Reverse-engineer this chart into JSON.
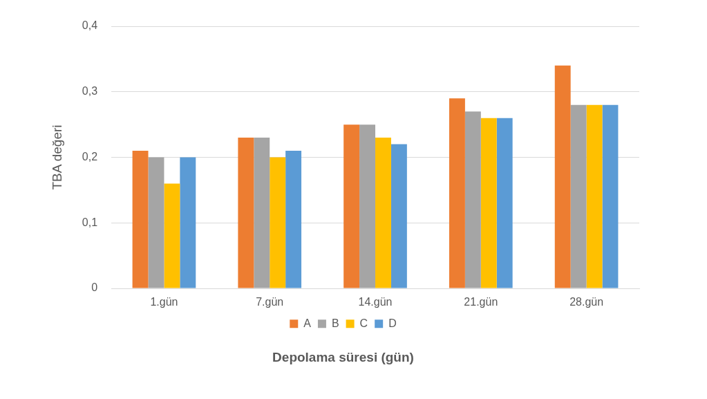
{
  "chart_data": {
    "type": "bar",
    "xlabel": "Depolama süresi (gün)",
    "ylabel": "TBA değeri",
    "categories": [
      "1.gün",
      "7.gün",
      "14.gün",
      "21.gün",
      "28.gün"
    ],
    "series": [
      {
        "name": "A",
        "color": "#ed7d31",
        "values": [
          0.21,
          0.23,
          0.25,
          0.29,
          0.34
        ]
      },
      {
        "name": "B",
        "color": "#a5a5a5",
        "values": [
          0.2,
          0.23,
          0.25,
          0.27,
          0.28
        ]
      },
      {
        "name": "C",
        "color": "#ffc000",
        "values": [
          0.16,
          0.2,
          0.23,
          0.26,
          0.28
        ]
      },
      {
        "name": "D",
        "color": "#5b9bd5",
        "values": [
          0.2,
          0.21,
          0.22,
          0.26,
          0.28
        ]
      }
    ],
    "ylim": [
      0,
      0.4
    ],
    "yticks": [
      {
        "value": 0,
        "label": "0"
      },
      {
        "value": 0.1,
        "label": "0,1"
      },
      {
        "value": 0.2,
        "label": "0,2"
      },
      {
        "value": 0.3,
        "label": "0,3"
      },
      {
        "value": 0.4,
        "label": "0,4"
      }
    ],
    "grid": "y",
    "legend": "bottom"
  }
}
